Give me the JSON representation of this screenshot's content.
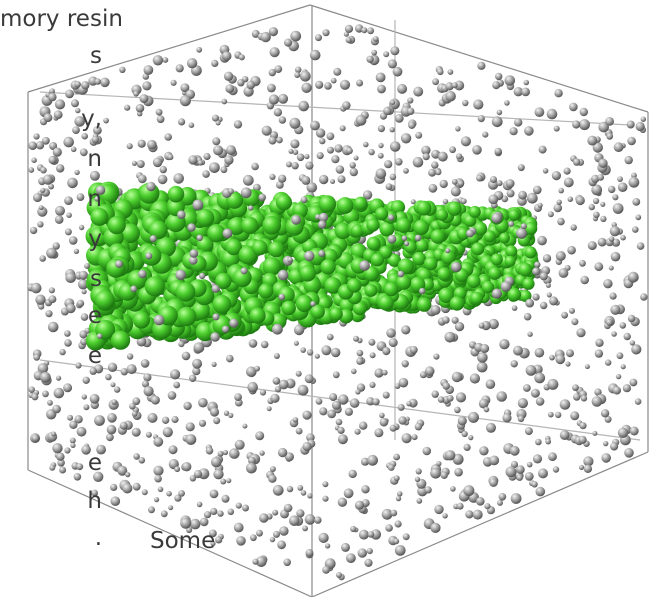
{
  "text_fragments": [
    "mory resin",
    "s",
    "y,",
    "n",
    "n",
    "y",
    "s",
    "e",
    "e",
    "e",
    "h",
    ".",
    "Some"
  ]
}
